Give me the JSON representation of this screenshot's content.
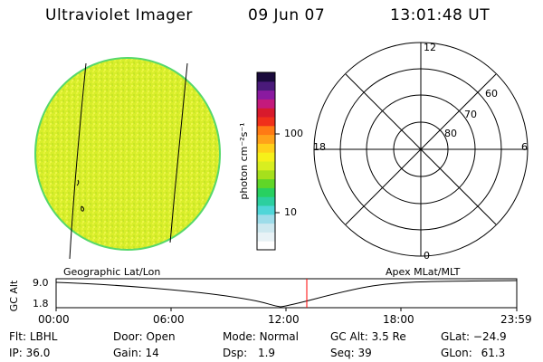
{
  "header": {
    "title": "Ultraviolet Imager",
    "date": "09 Jun 07",
    "time": "13:01:48 UT"
  },
  "image_panel": {
    "fill_color": "#d8ee2a",
    "edge_color": "#56d86a",
    "label": "Geographic Lat/Lon"
  },
  "colorbar": {
    "unit_label": "photon cm⁻²s⁻¹",
    "tick_100": "100",
    "tick_10": "10",
    "colors": [
      "#ffffff",
      "#e8f2f6",
      "#cde8ef",
      "#9ddce9",
      "#4fd6d8",
      "#2ccf9f",
      "#28d060",
      "#60d628",
      "#a6e01c",
      "#d8ee20",
      "#f6f01a",
      "#ffd01a",
      "#ffa21a",
      "#ff7a14",
      "#f0301a",
      "#d81a2c",
      "#c41a7c",
      "#8a1aa0",
      "#4a1a7a",
      "#1a0a3c"
    ]
  },
  "polar_panel": {
    "label": "Apex MLat/MLT",
    "mlt_top": "12",
    "mlt_left": "18",
    "mlt_right": "6",
    "mlt_bottom": "0",
    "lat_60": "60",
    "lat_70": "70",
    "lat_80": "80"
  },
  "altitude_plot": {
    "ylabel": "GC Alt",
    "ytick_high": "9.0",
    "ytick_low": "1.8",
    "xticks": [
      "00:00",
      "06:00",
      "12:00",
      "18:00",
      "23:59"
    ],
    "marker_color": "#ff0000"
  },
  "footer": {
    "filter_label": "Flt:",
    "filter_value": "LBHL",
    "door_label": "Door:",
    "door_value": "Open",
    "mode_label": "Mode:",
    "mode_value": "Normal",
    "gcalt_label": "GC Alt:",
    "gcalt_value": "3.5 Re",
    "glat_label": "GLat:",
    "glat_value": "−24.9",
    "ip_label": "IP:",
    "ip_value": "36.0",
    "gain_label": "Gain:",
    "gain_value": "14",
    "dsp_label": "Dsp:",
    "dsp_value": "1.9",
    "seq_label": "Seq:",
    "seq_value": "39",
    "glon_label": "GLon:",
    "glon_value": "61.3"
  }
}
